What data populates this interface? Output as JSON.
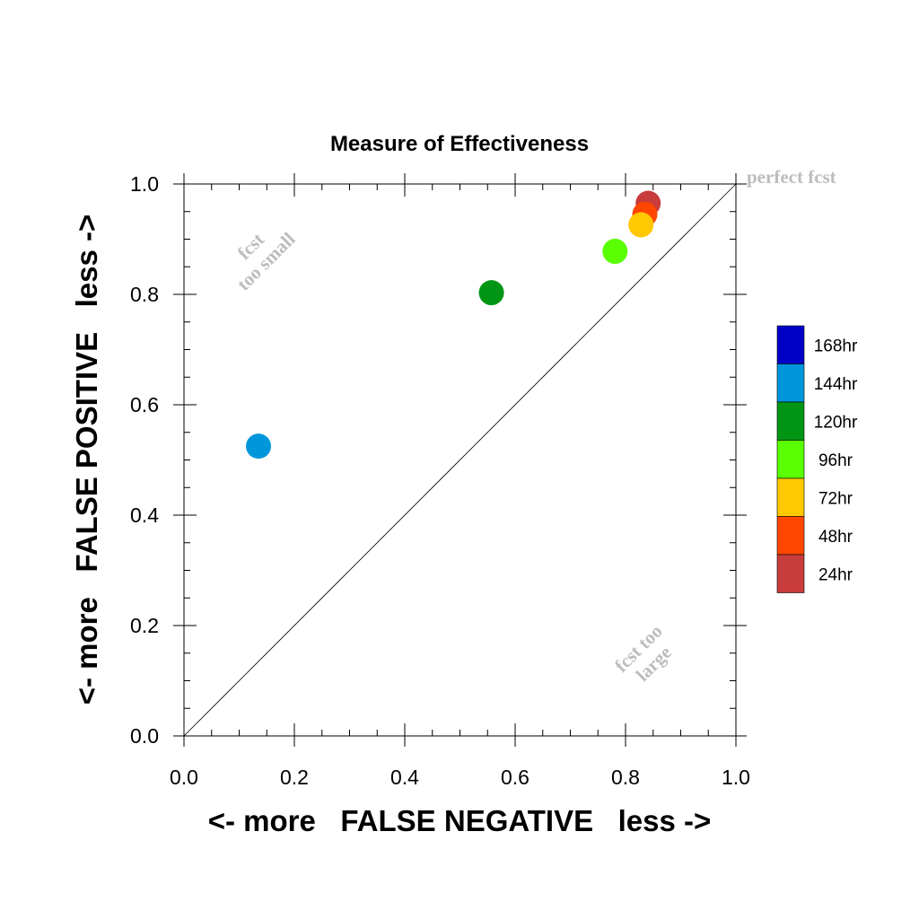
{
  "chart_data": {
    "type": "scatter",
    "title": "Measure of Effectiveness",
    "xlabel": "<- more   FALSE NEGATIVE   less ->",
    "ylabel": "<- more   FALSE POSITIVE   less ->",
    "xlim": [
      0.0,
      1.0
    ],
    "ylim": [
      0.0,
      1.0
    ],
    "x_ticks": [
      "0.0",
      "0.2",
      "0.4",
      "0.6",
      "0.8",
      "1.0"
    ],
    "y_ticks": [
      "0.0",
      "0.2",
      "0.4",
      "0.6",
      "0.8",
      "1.0"
    ],
    "grid": false,
    "diagonal_line": true,
    "annotations": {
      "perfect": "perfect fcst",
      "small_line1": "fcst",
      "small_line2": "too small",
      "large_line1": "fcst too",
      "large_line2": "large"
    },
    "legend": {
      "placement": "right",
      "entries": [
        {
          "label": "168hr",
          "color": "#0000c8"
        },
        {
          "label": "144hr",
          "color": "#0096dc"
        },
        {
          "label": "120hr",
          "color": "#009614"
        },
        {
          "label": "96hr",
          "color": "#5aff00"
        },
        {
          "label": "72hr",
          "color": "#ffc800"
        },
        {
          "label": "48hr",
          "color": "#ff4600"
        },
        {
          "label": "24hr",
          "color": "#c83c3c"
        }
      ]
    },
    "points": [
      {
        "series": "144hr",
        "x": 0.135,
        "y": 0.525,
        "color": "#0096dc"
      },
      {
        "series": "120hr",
        "x": 0.557,
        "y": 0.803,
        "color": "#009614"
      },
      {
        "series": "96hr",
        "x": 0.781,
        "y": 0.878,
        "color": "#5aff00"
      },
      {
        "series": "24hr",
        "x": 0.841,
        "y": 0.965,
        "color": "#c83c3c"
      },
      {
        "series": "48hr",
        "x": 0.835,
        "y": 0.945,
        "color": "#ff4600"
      },
      {
        "series": "72hr",
        "x": 0.828,
        "y": 0.926,
        "color": "#ffc800"
      }
    ]
  }
}
